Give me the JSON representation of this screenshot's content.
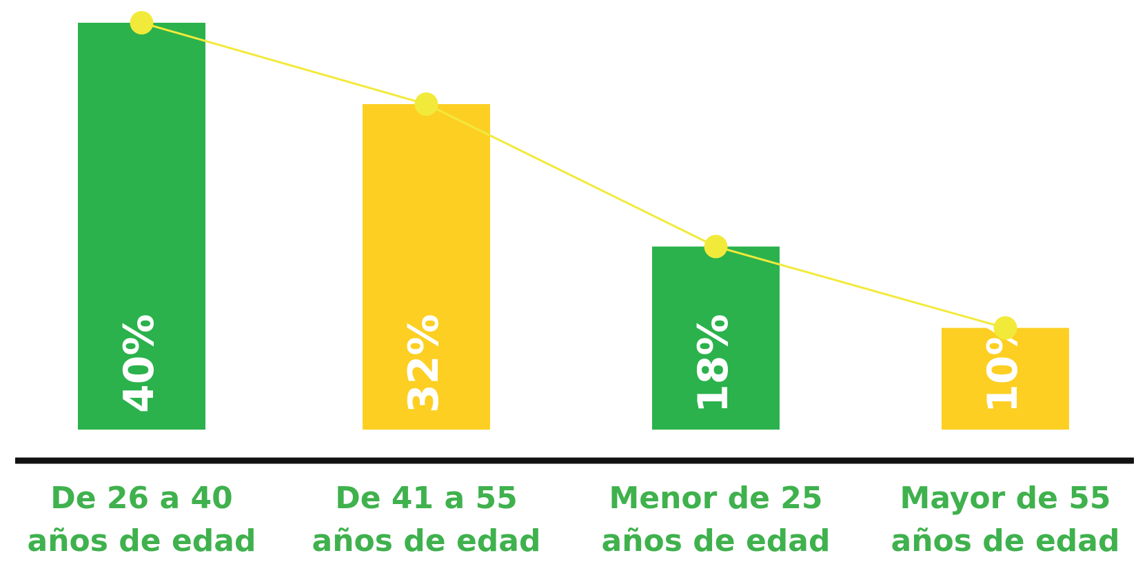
{
  "chart_data": {
    "type": "bar",
    "categories": [
      [
        "De 26 a 40",
        "años de edad"
      ],
      [
        "De 41 a 55",
        "años de edad"
      ],
      [
        "Menor de 25",
        "años de edad"
      ],
      [
        "Mayor de 55",
        "años de edad"
      ]
    ],
    "values": [
      40,
      32,
      18,
      10
    ],
    "value_labels": [
      "40%",
      "32%",
      "18%",
      "10%"
    ],
    "colors": [
      "#2bb24c",
      "#fccf22",
      "#2bb24c",
      "#fccf22"
    ],
    "line_color": "#f2ea3a",
    "ylim": [
      0,
      40
    ]
  }
}
